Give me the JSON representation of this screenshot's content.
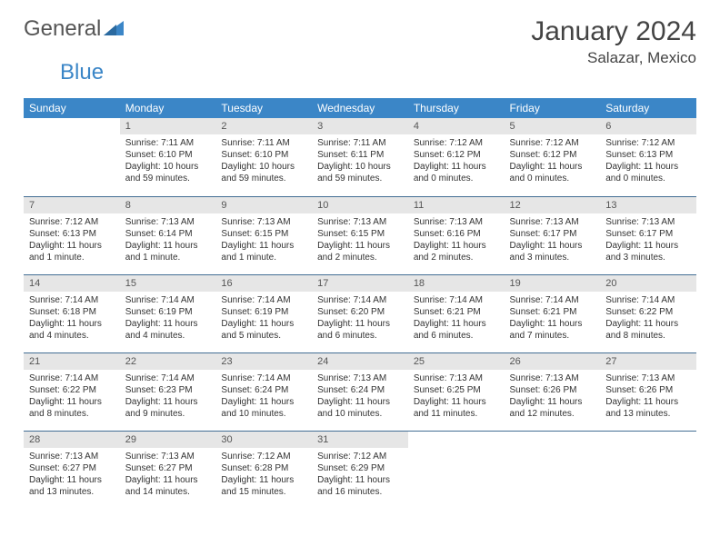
{
  "brand": {
    "part1": "General",
    "part2": "Blue",
    "accent_color": "#3b86c7",
    "text_color": "#555555"
  },
  "title": "January 2024",
  "location": "Salazar, Mexico",
  "colors": {
    "header_bg": "#3b86c7",
    "header_text": "#ffffff",
    "daynum_bg": "#e6e6e6",
    "row_border": "#436e94",
    "body_text": "#333333"
  },
  "dayHeaders": [
    "Sunday",
    "Monday",
    "Tuesday",
    "Wednesday",
    "Thursday",
    "Friday",
    "Saturday"
  ],
  "weeks": [
    [
      {
        "n": "",
        "t": ""
      },
      {
        "n": "1",
        "t": "Sunrise: 7:11 AM\nSunset: 6:10 PM\nDaylight: 10 hours and 59 minutes."
      },
      {
        "n": "2",
        "t": "Sunrise: 7:11 AM\nSunset: 6:10 PM\nDaylight: 10 hours and 59 minutes."
      },
      {
        "n": "3",
        "t": "Sunrise: 7:11 AM\nSunset: 6:11 PM\nDaylight: 10 hours and 59 minutes."
      },
      {
        "n": "4",
        "t": "Sunrise: 7:12 AM\nSunset: 6:12 PM\nDaylight: 11 hours and 0 minutes."
      },
      {
        "n": "5",
        "t": "Sunrise: 7:12 AM\nSunset: 6:12 PM\nDaylight: 11 hours and 0 minutes."
      },
      {
        "n": "6",
        "t": "Sunrise: 7:12 AM\nSunset: 6:13 PM\nDaylight: 11 hours and 0 minutes."
      }
    ],
    [
      {
        "n": "7",
        "t": "Sunrise: 7:12 AM\nSunset: 6:13 PM\nDaylight: 11 hours and 1 minute."
      },
      {
        "n": "8",
        "t": "Sunrise: 7:13 AM\nSunset: 6:14 PM\nDaylight: 11 hours and 1 minute."
      },
      {
        "n": "9",
        "t": "Sunrise: 7:13 AM\nSunset: 6:15 PM\nDaylight: 11 hours and 1 minute."
      },
      {
        "n": "10",
        "t": "Sunrise: 7:13 AM\nSunset: 6:15 PM\nDaylight: 11 hours and 2 minutes."
      },
      {
        "n": "11",
        "t": "Sunrise: 7:13 AM\nSunset: 6:16 PM\nDaylight: 11 hours and 2 minutes."
      },
      {
        "n": "12",
        "t": "Sunrise: 7:13 AM\nSunset: 6:17 PM\nDaylight: 11 hours and 3 minutes."
      },
      {
        "n": "13",
        "t": "Sunrise: 7:13 AM\nSunset: 6:17 PM\nDaylight: 11 hours and 3 minutes."
      }
    ],
    [
      {
        "n": "14",
        "t": "Sunrise: 7:14 AM\nSunset: 6:18 PM\nDaylight: 11 hours and 4 minutes."
      },
      {
        "n": "15",
        "t": "Sunrise: 7:14 AM\nSunset: 6:19 PM\nDaylight: 11 hours and 4 minutes."
      },
      {
        "n": "16",
        "t": "Sunrise: 7:14 AM\nSunset: 6:19 PM\nDaylight: 11 hours and 5 minutes."
      },
      {
        "n": "17",
        "t": "Sunrise: 7:14 AM\nSunset: 6:20 PM\nDaylight: 11 hours and 6 minutes."
      },
      {
        "n": "18",
        "t": "Sunrise: 7:14 AM\nSunset: 6:21 PM\nDaylight: 11 hours and 6 minutes."
      },
      {
        "n": "19",
        "t": "Sunrise: 7:14 AM\nSunset: 6:21 PM\nDaylight: 11 hours and 7 minutes."
      },
      {
        "n": "20",
        "t": "Sunrise: 7:14 AM\nSunset: 6:22 PM\nDaylight: 11 hours and 8 minutes."
      }
    ],
    [
      {
        "n": "21",
        "t": "Sunrise: 7:14 AM\nSunset: 6:22 PM\nDaylight: 11 hours and 8 minutes."
      },
      {
        "n": "22",
        "t": "Sunrise: 7:14 AM\nSunset: 6:23 PM\nDaylight: 11 hours and 9 minutes."
      },
      {
        "n": "23",
        "t": "Sunrise: 7:14 AM\nSunset: 6:24 PM\nDaylight: 11 hours and 10 minutes."
      },
      {
        "n": "24",
        "t": "Sunrise: 7:13 AM\nSunset: 6:24 PM\nDaylight: 11 hours and 10 minutes."
      },
      {
        "n": "25",
        "t": "Sunrise: 7:13 AM\nSunset: 6:25 PM\nDaylight: 11 hours and 11 minutes."
      },
      {
        "n": "26",
        "t": "Sunrise: 7:13 AM\nSunset: 6:26 PM\nDaylight: 11 hours and 12 minutes."
      },
      {
        "n": "27",
        "t": "Sunrise: 7:13 AM\nSunset: 6:26 PM\nDaylight: 11 hours and 13 minutes."
      }
    ],
    [
      {
        "n": "28",
        "t": "Sunrise: 7:13 AM\nSunset: 6:27 PM\nDaylight: 11 hours and 13 minutes."
      },
      {
        "n": "29",
        "t": "Sunrise: 7:13 AM\nSunset: 6:27 PM\nDaylight: 11 hours and 14 minutes."
      },
      {
        "n": "30",
        "t": "Sunrise: 7:12 AM\nSunset: 6:28 PM\nDaylight: 11 hours and 15 minutes."
      },
      {
        "n": "31",
        "t": "Sunrise: 7:12 AM\nSunset: 6:29 PM\nDaylight: 11 hours and 16 minutes."
      },
      {
        "n": "",
        "t": ""
      },
      {
        "n": "",
        "t": ""
      },
      {
        "n": "",
        "t": ""
      }
    ]
  ]
}
